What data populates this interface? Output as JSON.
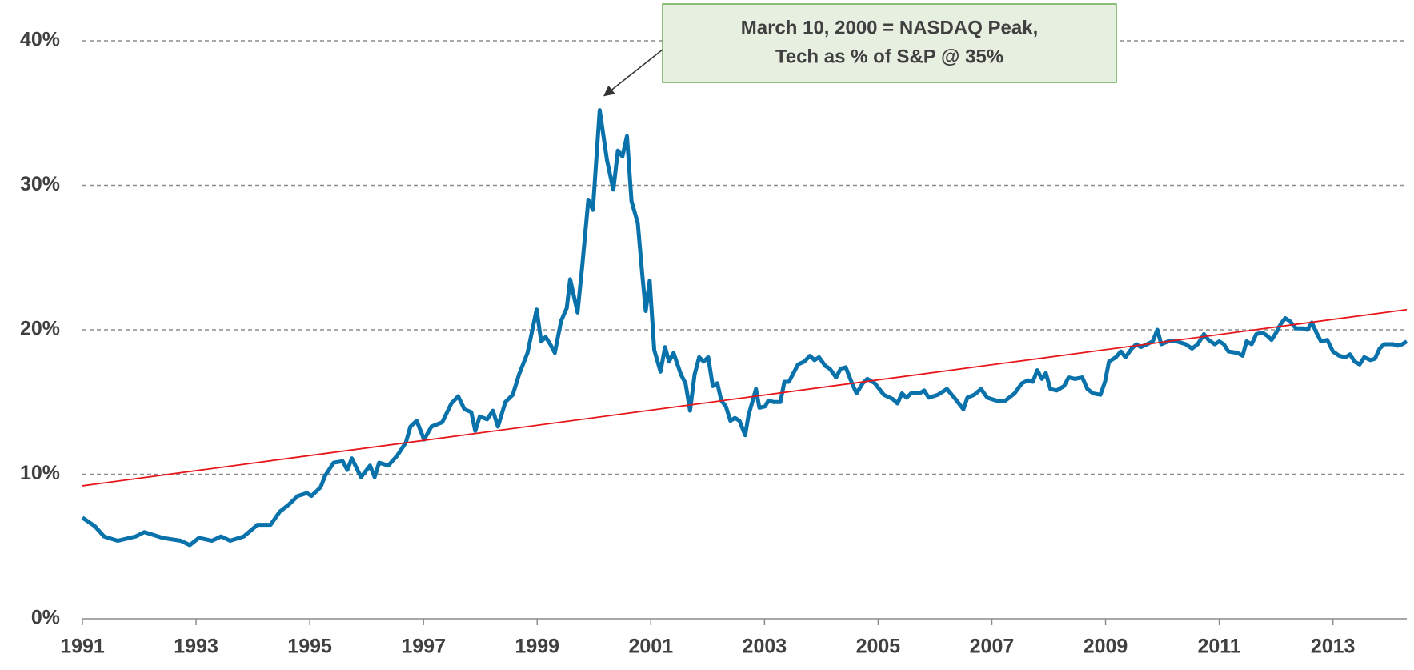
{
  "chart_data": {
    "type": "line",
    "xlim": [
      1991,
      2014.3
    ],
    "xticks": [
      1991,
      1993,
      1995,
      1997,
      1999,
      2001,
      2003,
      2005,
      2007,
      2009,
      2011,
      2013
    ],
    "ylim": [
      0,
      40
    ],
    "yticks": [
      {
        "value": 0,
        "label": "0%"
      },
      {
        "value": 10,
        "label": "10%"
      },
      {
        "value": 20,
        "label": "20%"
      },
      {
        "value": 30,
        "label": "30%"
      },
      {
        "value": 40,
        "label": "40%"
      }
    ],
    "grid": true,
    "series": [
      {
        "color": "#0a72ab",
        "x": [
          1991.0,
          1991.22,
          1991.38,
          1991.62,
          1991.94,
          1992.09,
          1992.41,
          1992.73,
          1992.89,
          1993.05,
          1993.28,
          1993.44,
          1993.6,
          1993.84,
          1994.08,
          1994.31,
          1994.47,
          1994.63,
          1994.79,
          1994.95,
          1995.03,
          1995.19,
          1995.27,
          1995.42,
          1995.58,
          1995.66,
          1995.74,
          1995.9,
          1996.06,
          1996.14,
          1996.22,
          1996.38,
          1996.54,
          1996.69,
          1996.77,
          1996.88,
          1997.01,
          1997.14,
          1997.33,
          1997.49,
          1997.61,
          1997.72,
          1997.84,
          1997.91,
          1997.99,
          1998.12,
          1998.22,
          1998.31,
          1998.44,
          1998.57,
          1998.68,
          1998.83,
          1998.99,
          1999.07,
          1999.15,
          1999.23,
          1999.31,
          1999.42,
          1999.52,
          1999.58,
          1999.71,
          1999.79,
          1999.9,
          1999.98,
          2000.1,
          2000.23,
          2000.34,
          2000.42,
          2000.5,
          2000.58,
          2000.66,
          2000.77,
          2000.85,
          2000.91,
          2000.98,
          2001.06,
          2001.17,
          2001.25,
          2001.32,
          2001.4,
          2001.53,
          2001.61,
          2001.69,
          2001.77,
          2001.85,
          2001.93,
          2002.01,
          2002.09,
          2002.17,
          2002.24,
          2002.32,
          2002.4,
          2002.48,
          2002.56,
          2002.66,
          2002.72,
          2002.85,
          2002.91,
          2003.01,
          2003.07,
          2003.16,
          2003.28,
          2003.35,
          2003.43,
          2003.51,
          2003.59,
          2003.7,
          2003.8,
          2003.88,
          2003.96,
          2004.07,
          2004.15,
          2004.26,
          2004.34,
          2004.43,
          2004.54,
          2004.62,
          2004.73,
          2004.81,
          2004.94,
          2005.1,
          2005.26,
          2005.34,
          2005.42,
          2005.5,
          2005.58,
          2005.73,
          2005.81,
          2005.89,
          2006.05,
          2006.21,
          2006.34,
          2006.5,
          2006.57,
          2006.69,
          2006.81,
          2006.92,
          2007.08,
          2007.24,
          2007.4,
          2007.53,
          2007.64,
          2007.72,
          2007.8,
          2007.88,
          2007.95,
          2008.03,
          2008.14,
          2008.27,
          2008.35,
          2008.46,
          2008.59,
          2008.68,
          2008.78,
          2008.91,
          2008.99,
          2009.06,
          2009.18,
          2009.27,
          2009.35,
          2009.46,
          2009.54,
          2009.62,
          2009.73,
          2009.83,
          2009.91,
          2009.98,
          2010.1,
          2010.25,
          2010.41,
          2010.52,
          2010.62,
          2010.73,
          2010.81,
          2010.92,
          2011.0,
          2011.08,
          2011.16,
          2011.32,
          2011.41,
          2011.48,
          2011.57,
          2011.65,
          2011.76,
          2011.84,
          2011.92,
          2012.0,
          2012.08,
          2012.16,
          2012.24,
          2012.35,
          2012.47,
          2012.55,
          2012.63,
          2012.71,
          2012.79,
          2012.9,
          2013.0,
          2013.11,
          2013.22,
          2013.3,
          2013.38,
          2013.47,
          2013.55,
          2013.66,
          2013.74,
          2013.82,
          2013.9,
          2014.06,
          2014.14,
          2014.22,
          2014.3
        ],
        "values": [
          7.0,
          6.4,
          5.7,
          5.4,
          5.7,
          6.0,
          5.6,
          5.4,
          5.1,
          5.6,
          5.4,
          5.7,
          5.4,
          5.7,
          6.5,
          6.5,
          7.4,
          7.9,
          8.5,
          8.7,
          8.5,
          9.1,
          9.9,
          10.8,
          10.9,
          10.3,
          11.1,
          9.8,
          10.6,
          9.8,
          10.8,
          10.6,
          11.3,
          12.2,
          13.3,
          13.7,
          12.4,
          13.3,
          13.6,
          14.9,
          15.4,
          14.5,
          14.3,
          13.0,
          14.0,
          13.8,
          14.4,
          13.3,
          15.0,
          15.5,
          16.9,
          18.4,
          21.4,
          19.2,
          19.5,
          19.0,
          18.4,
          20.6,
          21.5,
          23.5,
          21.2,
          24.3,
          29.0,
          28.3,
          35.2,
          31.7,
          29.7,
          32.4,
          32.0,
          33.4,
          28.9,
          27.4,
          23.8,
          21.3,
          23.4,
          18.6,
          17.1,
          18.8,
          17.8,
          18.4,
          16.9,
          16.3,
          14.4,
          16.9,
          18.1,
          17.8,
          18.1,
          16.1,
          16.3,
          15.1,
          14.7,
          13.7,
          13.9,
          13.7,
          12.7,
          14.1,
          15.9,
          14.6,
          14.7,
          15.1,
          15.0,
          15.0,
          16.4,
          16.4,
          17.0,
          17.6,
          17.8,
          18.2,
          17.9,
          18.1,
          17.5,
          17.3,
          16.7,
          17.3,
          17.4,
          16.3,
          15.6,
          16.3,
          16.6,
          16.3,
          15.5,
          15.2,
          14.9,
          15.6,
          15.3,
          15.6,
          15.6,
          15.8,
          15.3,
          15.5,
          15.9,
          15.3,
          14.5,
          15.3,
          15.5,
          15.9,
          15.3,
          15.1,
          15.1,
          15.6,
          16.3,
          16.5,
          16.4,
          17.2,
          16.6,
          17.0,
          15.9,
          15.8,
          16.1,
          16.7,
          16.6,
          16.7,
          15.9,
          15.6,
          15.5,
          16.4,
          17.8,
          18.1,
          18.5,
          18.1,
          18.7,
          19.0,
          18.8,
          19.0,
          19.2,
          20.0,
          19.0,
          19.2,
          19.2,
          19.0,
          18.7,
          19.0,
          19.7,
          19.3,
          19.0,
          19.2,
          19.0,
          18.5,
          18.4,
          18.2,
          19.2,
          19.0,
          19.7,
          19.8,
          19.6,
          19.3,
          19.8,
          20.4,
          20.8,
          20.6,
          20.1,
          20.1,
          20.0,
          20.5,
          19.8,
          19.2,
          19.3,
          18.5,
          18.2,
          18.1,
          18.3,
          17.8,
          17.6,
          18.1,
          17.9,
          18.0,
          18.7,
          19.0,
          19.0,
          18.9,
          19.0,
          19.2
        ]
      },
      {
        "color": "#e8161b",
        "x": [
          1991,
          2014.3
        ],
        "values": [
          9.2,
          21.4
        ]
      }
    ],
    "annotation": {
      "text": [
        "March 10, 2000 = NASDAQ Peak,",
        "Tech as % of S&P @ 35%"
      ],
      "x": 2000.18,
      "y": 36.2
    }
  }
}
